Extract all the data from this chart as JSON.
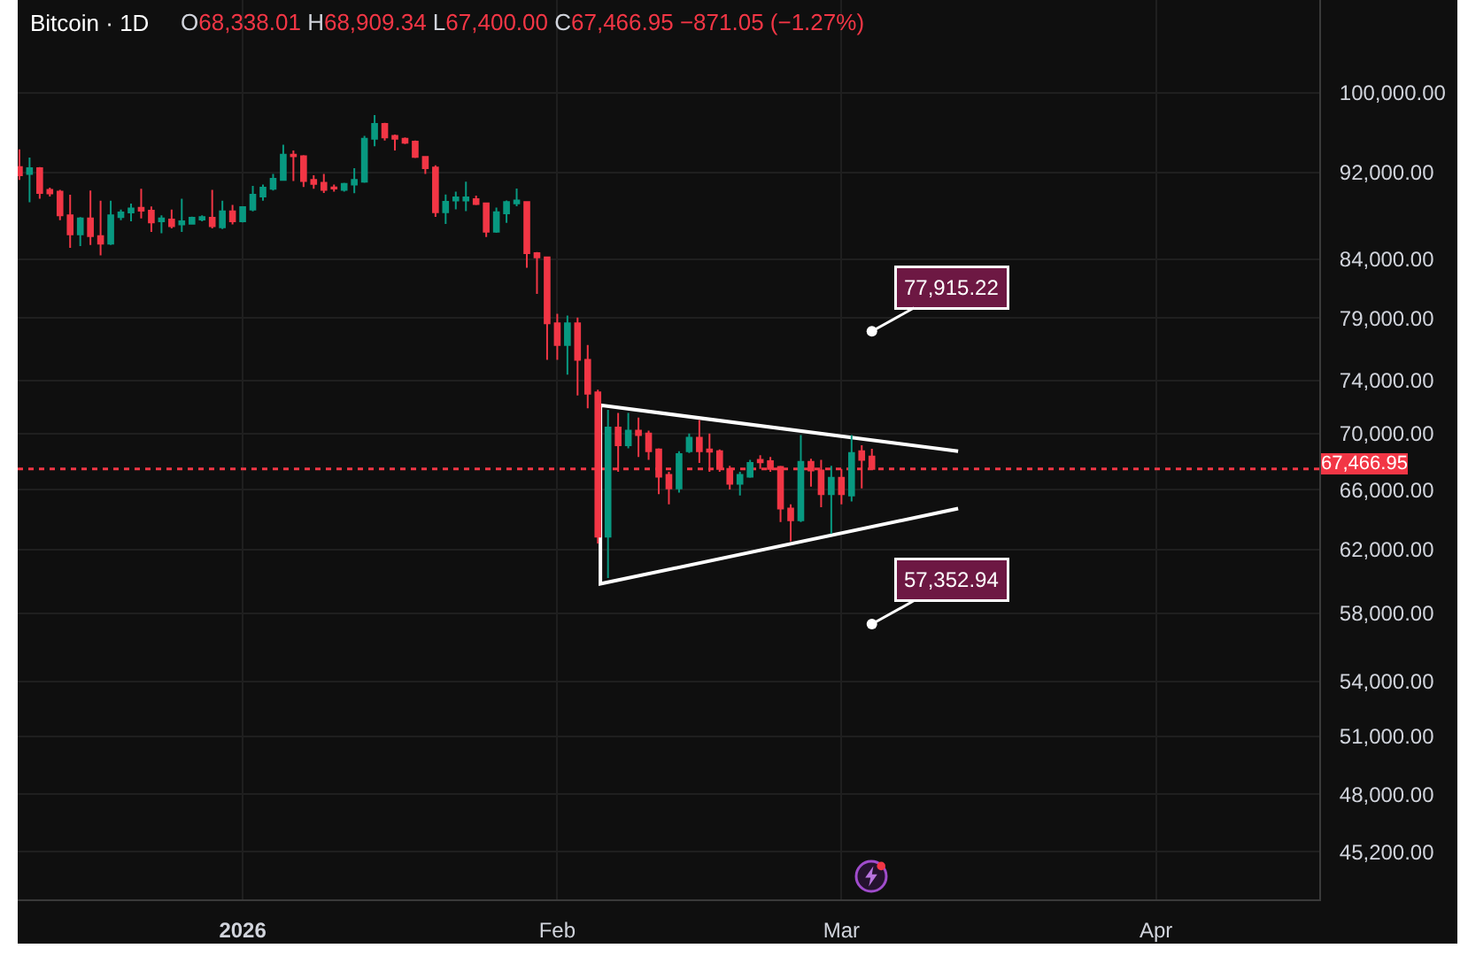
{
  "chart_data": {
    "type": "candlestick",
    "title": "Bitcoin · 1D",
    "subtitle": "O68,338.01 H68,909.34 L67,400.00 C67,466.95 −871.05 (−1.27%)",
    "x": [
      "2025-12-10",
      "2025-12-11",
      "2025-12-12",
      "2025-12-13",
      "2025-12-14",
      "2025-12-15",
      "2025-12-16",
      "2025-12-17",
      "2025-12-18",
      "2025-12-19",
      "2025-12-20",
      "2025-12-21",
      "2025-12-22",
      "2025-12-23",
      "2025-12-24",
      "2025-12-25",
      "2025-12-26",
      "2025-12-27",
      "2025-12-28",
      "2025-12-29",
      "2025-12-30",
      "2025-12-31",
      "2026-01-01",
      "2026-01-02",
      "2026-01-03",
      "2026-01-04",
      "2026-01-05",
      "2026-01-06",
      "2026-01-07",
      "2026-01-08",
      "2026-01-09",
      "2026-01-10",
      "2026-01-11",
      "2026-01-12",
      "2026-01-13",
      "2026-01-14",
      "2026-01-15",
      "2026-01-16",
      "2026-01-17",
      "2026-01-18",
      "2026-01-19",
      "2026-01-20",
      "2026-01-21",
      "2026-01-22",
      "2026-01-23",
      "2026-01-24",
      "2026-01-25",
      "2026-01-26",
      "2026-01-27",
      "2026-01-28",
      "2026-01-29",
      "2026-01-30",
      "2026-01-31",
      "2026-02-01",
      "2026-02-02",
      "2026-02-03",
      "2026-02-04",
      "2026-02-05",
      "2026-02-06",
      "2026-02-07",
      "2026-02-08",
      "2026-02-09",
      "2026-02-10",
      "2026-02-11",
      "2026-02-12",
      "2026-02-13",
      "2026-02-14",
      "2026-02-15",
      "2026-02-16",
      "2026-02-17",
      "2026-02-18",
      "2026-02-19",
      "2026-02-20",
      "2026-02-21",
      "2026-02-22",
      "2026-02-23",
      "2026-02-24",
      "2026-02-25",
      "2026-02-26",
      "2026-02-27",
      "2026-02-28",
      "2026-03-01",
      "2026-03-02",
      "2026-03-03",
      "2026-03-04"
    ],
    "ohlc": [
      [
        92530,
        94260,
        91290,
        91740
      ],
      [
        91860,
        93450,
        89170,
        92420
      ],
      [
        92420,
        92530,
        89500,
        90050
      ],
      [
        90340,
        90560,
        89720,
        90000
      ],
      [
        90170,
        90340,
        87520,
        87960
      ],
      [
        87960,
        89890,
        85020,
        86240
      ],
      [
        86240,
        87800,
        85180,
        87690
      ],
      [
        87690,
        90280,
        85280,
        86080
      ],
      [
        86080,
        89330,
        84350,
        85390
      ],
      [
        85390,
        89330,
        85280,
        87960
      ],
      [
        87800,
        88500,
        87520,
        88230
      ],
      [
        88230,
        89060,
        87410,
        88610
      ],
      [
        88670,
        90450,
        87690,
        88400
      ],
      [
        88400,
        88780,
        86450,
        87310
      ],
      [
        87410,
        87960,
        86340,
        87690
      ],
      [
        87580,
        88500,
        86770,
        86980
      ],
      [
        87140,
        89500,
        86450,
        87410
      ],
      [
        87200,
        87850,
        87140,
        87740
      ],
      [
        87580,
        87960,
        87410,
        87800
      ],
      [
        87740,
        90340,
        86770,
        86980
      ],
      [
        86870,
        89330,
        86710,
        88340
      ],
      [
        88340,
        88940,
        87140,
        87410
      ],
      [
        87410,
        88780,
        87310,
        88720
      ],
      [
        88500,
        90730,
        88340,
        89890
      ],
      [
        89720,
        90840,
        89330,
        90560
      ],
      [
        90450,
        91860,
        90280,
        91400
      ],
      [
        91290,
        94720,
        91200,
        93740
      ],
      [
        93740,
        94140,
        91180,
        93570
      ],
      [
        93570,
        93680,
        90620,
        91180
      ],
      [
        91290,
        91740,
        90450,
        90900
      ],
      [
        91010,
        91860,
        90050,
        90340
      ],
      [
        90570,
        90850,
        90180,
        90460
      ],
      [
        90350,
        91020,
        90180,
        90900
      ],
      [
        90850,
        92420,
        90020,
        91290
      ],
      [
        91130,
        95600,
        91020,
        95310
      ],
      [
        95310,
        97690,
        94550,
        96790
      ],
      [
        96790,
        96910,
        95130,
        95430
      ],
      [
        95600,
        95720,
        94140,
        95310
      ],
      [
        95310,
        95430,
        94780,
        94900
      ],
      [
        95020,
        95130,
        93400,
        93510
      ],
      [
        93510,
        93600,
        91860,
        92420
      ],
      [
        92480,
        92700,
        87820,
        88250
      ],
      [
        88250,
        89900,
        87170,
        89220
      ],
      [
        89350,
        90180,
        88530,
        89630
      ],
      [
        89350,
        91130,
        88360,
        89630
      ],
      [
        89460,
        89790,
        88910,
        89020
      ],
      [
        89080,
        89150,
        86000,
        86480
      ],
      [
        86480,
        88690,
        86370,
        88250
      ],
      [
        88150,
        89350,
        87280,
        89190
      ],
      [
        89080,
        90460,
        88800,
        89350
      ],
      [
        89190,
        89250,
        83280,
        84550
      ],
      [
        84550,
        84650,
        81020,
        84190
      ],
      [
        84190,
        84250,
        75620,
        78570
      ],
      [
        78570,
        79350,
        75620,
        76800
      ],
      [
        76800,
        79200,
        74460,
        78570
      ],
      [
        78570,
        79050,
        72860,
        75620
      ],
      [
        75620,
        76800,
        71880,
        72990
      ],
      [
        73090,
        73300,
        62400,
        62850
      ],
      [
        62850,
        71760,
        60180,
        70450
      ],
      [
        70450,
        71540,
        67260,
        69160
      ],
      [
        69160,
        71540,
        68940,
        70230
      ],
      [
        70230,
        71190,
        68310,
        69890
      ],
      [
        70010,
        70230,
        68100,
        68730
      ],
      [
        68860,
        68940,
        65700,
        66920
      ],
      [
        67050,
        67260,
        65010,
        66100
      ],
      [
        66100,
        68730,
        65820,
        68520
      ],
      [
        68730,
        70010,
        68600,
        69710
      ],
      [
        69710,
        71010,
        67890,
        68730
      ],
      [
        68860,
        70010,
        67260,
        68690
      ],
      [
        68730,
        68860,
        67260,
        67470
      ],
      [
        67470,
        67680,
        66020,
        66430
      ],
      [
        66430,
        67260,
        65620,
        67050
      ],
      [
        66920,
        68100,
        66840,
        67890
      ],
      [
        68100,
        68440,
        67470,
        67930
      ],
      [
        68020,
        68310,
        67260,
        67470
      ],
      [
        67600,
        67680,
        63820,
        64730
      ],
      [
        64730,
        65010,
        62540,
        63940
      ],
      [
        63940,
        69890,
        63820,
        67970
      ],
      [
        67970,
        68180,
        66230,
        67350
      ],
      [
        67350,
        68100,
        64810,
        65700
      ],
      [
        65700,
        67680,
        63040,
        66840
      ],
      [
        66840,
        67470,
        65010,
        65700
      ],
      [
        65620,
        69890,
        65210,
        68600
      ],
      [
        68730,
        69160,
        66100,
        68100
      ],
      [
        68338.01,
        68909.34,
        67400.0,
        67466.95
      ]
    ],
    "series": [
      {
        "type": "line",
        "x": [
          "2026-03-12T12:00",
          "2026-02-05T06:00",
          "2026-02-05T06:00",
          "2026-03-12T12:00"
        ],
        "values": [
          68730,
          72110,
          59820,
          64720
        ],
        "color": "#ffffff"
      }
    ],
    "xlim": [
      "2025-12-09T20:00",
      "2026-04-17T02:00"
    ],
    "xticks": [
      {
        "value": "2026-01-01",
        "label": "2026"
      },
      {
        "value": "2026-02-01",
        "label": "Feb"
      },
      {
        "value": "2026-03-01",
        "label": "Mar"
      },
      {
        "value": "2026-04-01",
        "label": "Apr"
      }
    ],
    "ylim": [
      43000,
      110200
    ],
    "log": true,
    "yticks": [
      {
        "value": 100000,
        "label": "100,000.00"
      },
      {
        "value": 92000,
        "label": "92,000.00"
      },
      {
        "value": 84000,
        "label": "84,000.00"
      },
      {
        "value": 79000,
        "label": "79,000.00"
      },
      {
        "value": 74000,
        "label": "74,000.00"
      },
      {
        "value": 70000,
        "label": "70,000.00"
      },
      {
        "value": 66000,
        "label": "66,000.00"
      },
      {
        "value": 62000,
        "label": "62,000.00"
      },
      {
        "value": 58000,
        "label": "58,000.00"
      },
      {
        "value": 54000,
        "label": "54,000.00"
      },
      {
        "value": 51000,
        "label": "51,000.00"
      },
      {
        "value": 48000,
        "label": "48,000.00"
      },
      {
        "value": 45200,
        "label": "45,200.00"
      }
    ],
    "grid": true,
    "ref_lines": [
      {
        "axis": "y",
        "value": 67466.95,
        "label": "67,466.95",
        "color": "#f23645",
        "line_style": "dotted"
      }
    ],
    "annotations": [
      {
        "text": "77,915.22",
        "x": "2026-03-04",
        "y": 77915.22
      },
      {
        "text": "57,352.94",
        "x": "2026-03-04",
        "y": 57352.94
      }
    ]
  }
}
